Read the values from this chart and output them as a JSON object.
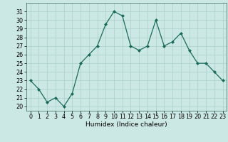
{
  "x": [
    0,
    1,
    2,
    3,
    4,
    5,
    6,
    7,
    8,
    9,
    10,
    11,
    12,
    13,
    14,
    15,
    16,
    17,
    18,
    19,
    20,
    21,
    22,
    23
  ],
  "y": [
    23,
    22,
    20.5,
    21,
    20,
    21.5,
    25,
    26,
    27,
    29.5,
    31,
    30.5,
    27,
    26.5,
    27,
    30,
    27,
    27.5,
    28.5,
    26.5,
    25,
    25,
    24,
    23
  ],
  "xlabel": "Humidex (Indice chaleur)",
  "ylabel": "",
  "xlim": [
    -0.5,
    23.5
  ],
  "ylim": [
    19.5,
    32
  ],
  "yticks": [
    20,
    21,
    22,
    23,
    24,
    25,
    26,
    27,
    28,
    29,
    30,
    31
  ],
  "xticks": [
    0,
    1,
    2,
    3,
    4,
    5,
    6,
    7,
    8,
    9,
    10,
    11,
    12,
    13,
    14,
    15,
    16,
    17,
    18,
    19,
    20,
    21,
    22,
    23
  ],
  "line_color": "#1a6b5a",
  "marker": "D",
  "marker_size": 2.0,
  "bg_color": "#cce8e4",
  "grid_color": "#aacfcb",
  "label_fontsize": 6.5,
  "tick_fontsize": 5.8,
  "linewidth": 0.9
}
